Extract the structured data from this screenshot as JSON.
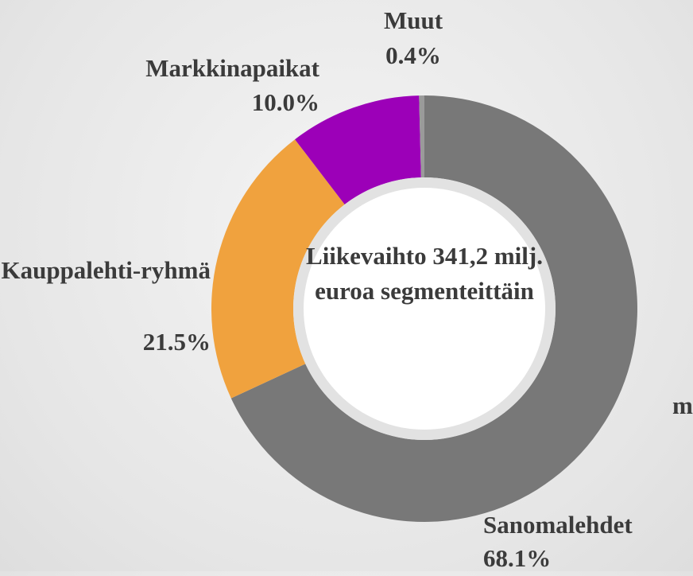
{
  "chart_data": {
    "type": "pie",
    "donut": true,
    "title": "Liikevaihto 341,2 milj. euroa segmenteittäin",
    "categories": [
      "Sanomalehdet",
      "Kauppalehti-ryhmä",
      "Markkinapaikat",
      "Muut"
    ],
    "values": [
      68.1,
      21.5,
      10,
      0.4
    ],
    "value_labels": [
      "68.1%",
      "21.5%",
      "10.0%",
      "0.4%"
    ],
    "colors": [
      "#787878",
      "#f0a23e",
      "#9c00b8",
      "#9a9a9a"
    ],
    "annotation": "m"
  }
}
